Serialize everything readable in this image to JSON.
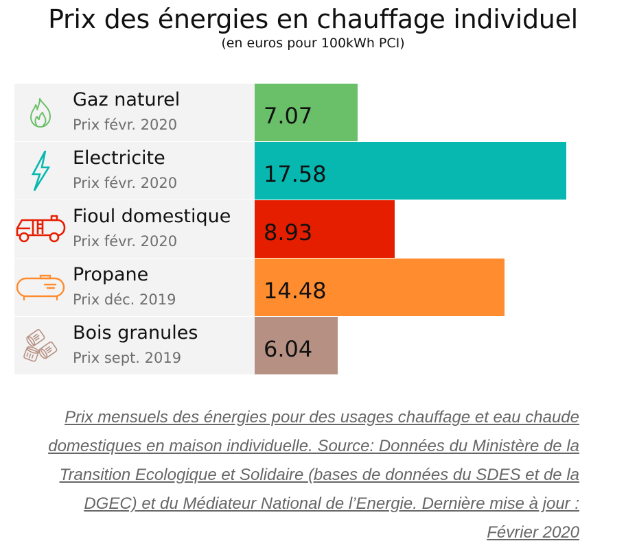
{
  "header": {
    "title": "Prix des énergies en chauffage individuel",
    "subtitle": "(en euros pour 100kWh PCI)"
  },
  "chart_data": {
    "type": "bar",
    "orientation": "horizontal",
    "title": "Prix des énergies en chauffage individuel",
    "subtitle": "(en euros pour 100kWh PCI)",
    "xlabel": "",
    "ylabel": "",
    "unit": "euros pour 100kWh PCI",
    "grid": false,
    "legend": "none",
    "categories": [
      "Gaz naturel",
      "Electricite",
      "Fioul domestique",
      "Propane",
      "Bois granules"
    ],
    "values": [
      7.07,
      17.58,
      8.93,
      14.48,
      6.04
    ],
    "value_labels": [
      "7.07",
      "17.58",
      "8.93",
      "14.48",
      "6.04"
    ],
    "dates": [
      "Prix févr. 2020",
      "Prix févr. 2020",
      "Prix févr. 2020",
      "Prix déc. 2019",
      "Prix sept. 2019"
    ],
    "colors": [
      "#6abf69",
      "#07b8b0",
      "#e61e00",
      "#ff8c2e",
      "#b69082"
    ],
    "icons": [
      "flame-icon",
      "lightning-icon",
      "fuel-truck-icon",
      "propane-tank-icon",
      "wood-pellets-icon"
    ]
  },
  "footnote": {
    "text": "Prix mensuels des énergies pour des usages chauffage et eau chaude domestiques en maison individuelle. Source: Données du Ministère de la Transition Ecologique et Solidaire (bases de données du SDES et de la DGEC) et du Médiateur National de l’Energie. Dernière mise à jour : Février 2020 "
  }
}
